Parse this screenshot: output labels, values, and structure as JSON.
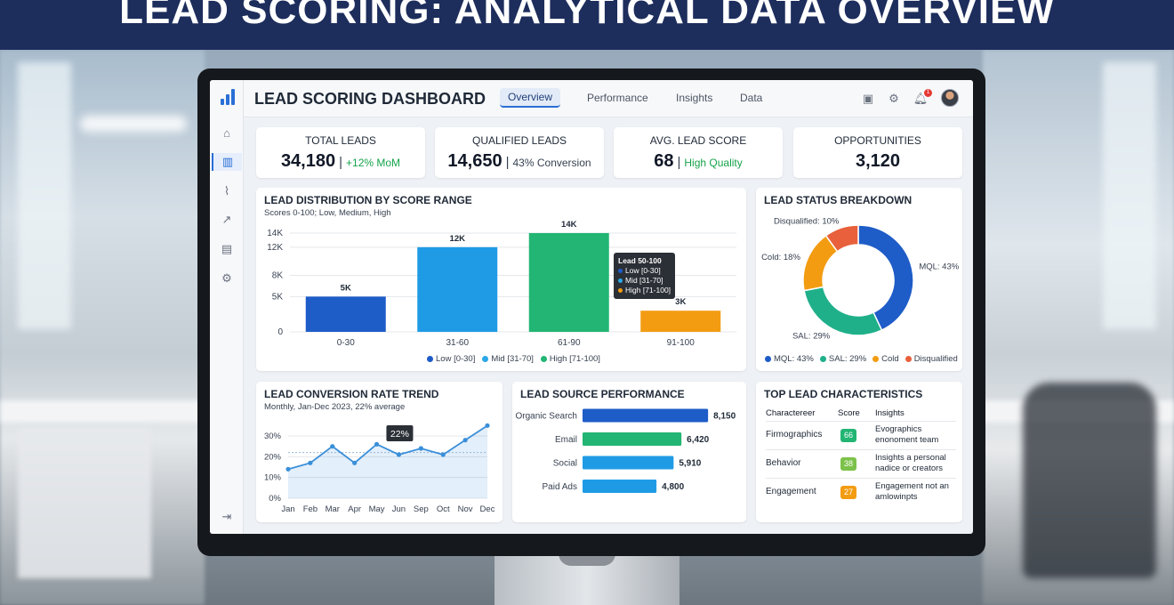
{
  "banner": {
    "title": "LEAD SCORING: ANALYTICAL DATA OVERVIEW"
  },
  "dashboard": {
    "title": "LEAD SCORING DASHBOARD",
    "tabs": [
      {
        "label": "Overview",
        "active": true
      },
      {
        "label": "Performance",
        "active": false
      },
      {
        "label": "Insights",
        "active": false
      },
      {
        "label": "Data",
        "active": false
      }
    ],
    "notification_count": "1",
    "sidebar": [
      "home-icon",
      "bar-chart-icon",
      "activity-icon",
      "trend-icon",
      "document-icon",
      "gear-icon",
      "logout-icon"
    ]
  },
  "kpis": [
    {
      "label": "TOTAL LEADS",
      "value": "34,180",
      "sub": "+12% MoM",
      "sub_color": "green"
    },
    {
      "label": "QUALIFIED LEADS",
      "value": "14,650",
      "sub": "43% Conversion",
      "sub_color": "default"
    },
    {
      "label": "AVG. LEAD SCORE",
      "value": "68",
      "sub": "High Quality",
      "sub_color": "green"
    },
    {
      "label": "OPPORTUNITIES",
      "value": "3,120",
      "sub": "",
      "sub_color": "default"
    }
  ],
  "distribution": {
    "title": "LEAD DISTRIBUTION BY SCORE RANGE",
    "subtitle": "Scores 0-100; Low, Medium, High",
    "tooltip": {
      "title": "Lead 50-100",
      "items": [
        {
          "label": "Low [0-30]",
          "color": "#1e5cc8"
        },
        {
          "label": "Mid [31-70]",
          "color": "#2aa7e8"
        },
        {
          "label": "High [71-100]",
          "color": "#f39c12"
        }
      ]
    },
    "legend": [
      {
        "label": "Low [0-30]",
        "color": "#1e5cc8"
      },
      {
        "label": "Mid [31-70]",
        "color": "#2aa7e8"
      },
      {
        "label": "High [71-100]",
        "color": "#22b573"
      }
    ]
  },
  "status": {
    "title": "LEAD STATUS BREAKDOWN",
    "legend": [
      {
        "label": "MQL: 43%",
        "color": "#1e5cc8"
      },
      {
        "label": "SAL: 29%",
        "color": "#1fb08a"
      },
      {
        "label": "Cold",
        "color": "#f39c12"
      },
      {
        "label": "Disqualified",
        "color": "#e8613c"
      }
    ]
  },
  "trend": {
    "title": "LEAD CONVERSION RATE TREND",
    "subtitle": "Monthly, Jan-Dec 2023, 22% average",
    "callout": "22%"
  },
  "source": {
    "title": "LEAD SOURCE PERFORMANCE"
  },
  "characteristics": {
    "title": "TOP LEAD CHARACTERISTICS",
    "headers": [
      "Charactereer",
      "Score",
      "Insights"
    ],
    "rows": [
      {
        "name": "Firmographics",
        "score": "66",
        "color": "#22b573",
        "insight": "Evographics enonoment team"
      },
      {
        "name": "Behavior",
        "score": "38",
        "color": "#7cc24a",
        "insight": "Insights a personal nadice or creators"
      },
      {
        "name": "Engagement",
        "score": "27",
        "color": "#f39c12",
        "insight": "Engagement not an amlowinpts"
      }
    ]
  },
  "chart_data": [
    {
      "type": "bar",
      "title": "LEAD DISTRIBUTION BY SCORE RANGE",
      "subtitle": "Scores 0-100; Low, Medium, High",
      "categories": [
        "0-30",
        "31-60",
        "61-90",
        "91-100"
      ],
      "values": [
        5000,
        12000,
        14000,
        3000
      ],
      "value_labels": [
        "5K",
        "12K",
        "14K",
        "3K"
      ],
      "colors": [
        "#1e5cc8",
        "#1f9be6",
        "#22b573",
        "#f39c12"
      ],
      "yticks": [
        "0",
        "5K",
        "8K",
        "12K",
        "14K"
      ],
      "ytick_values": [
        0,
        5000,
        8000,
        12000,
        14000
      ],
      "ylim": [
        0,
        14500
      ],
      "grid": true,
      "legend": "bottom"
    },
    {
      "type": "pie",
      "title": "LEAD STATUS BREAKDOWN",
      "donut": true,
      "slices": [
        {
          "label": "MQL: 43%",
          "value": 43,
          "color": "#1e5cc8"
        },
        {
          "label": "SAL: 29%",
          "value": 29,
          "color": "#1fb08a"
        },
        {
          "label": "Cold: 18%",
          "value": 18,
          "color": "#f39c12"
        },
        {
          "label": "Disqualified: 10%",
          "value": 10,
          "color": "#e8613c"
        }
      ],
      "legend": "bottom"
    },
    {
      "type": "line",
      "title": "LEAD CONVERSION RATE TREND",
      "subtitle": "Monthly, Jan-Dec 2023, 22% average",
      "x": [
        "Jan",
        "Feb",
        "Mar",
        "Apr",
        "May",
        "Jun",
        "Sep",
        "Oct",
        "Nov",
        "Dec"
      ],
      "values": [
        14,
        17,
        25,
        17,
        26,
        21,
        24,
        21,
        28,
        35
      ],
      "yticks": [
        "0%",
        "10%",
        "20%",
        "30%"
      ],
      "ytick_values": [
        0,
        10,
        20,
        30
      ],
      "ylim": [
        0,
        36
      ],
      "average": 22,
      "color": "#3a8fd9"
    },
    {
      "type": "bar",
      "orientation": "horizontal",
      "title": "LEAD SOURCE PERFORMANCE",
      "categories": [
        "Organic Search",
        "Email",
        "Social",
        "Paid Ads"
      ],
      "values": [
        8150,
        6420,
        5910,
        4800
      ],
      "value_labels": [
        "8,150",
        "6,420",
        "5,910",
        "4,800"
      ],
      "colors": [
        "#1e5cc8",
        "#22b573",
        "#1f9be6",
        "#1f9be6"
      ],
      "xlim": [
        0,
        8200
      ]
    }
  ]
}
